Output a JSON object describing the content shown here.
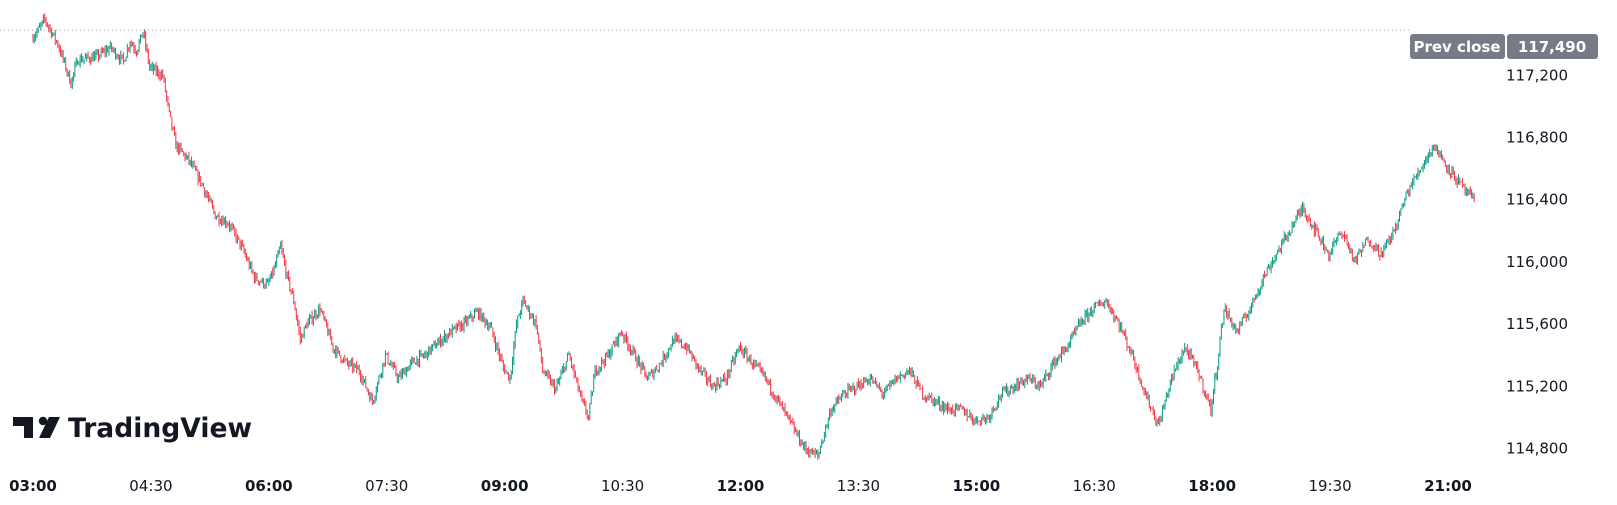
{
  "chart_data": {
    "type": "candlestick",
    "x_range": [
      "03:00",
      "21:00"
    ],
    "ylim": [
      114700,
      117620
    ],
    "yticks": [
      117200,
      116800,
      116400,
      116000,
      115600,
      115200,
      114800
    ],
    "ytick_labels": [
      "117,200",
      "116,800",
      "116,400",
      "116,000",
      "115,600",
      "115,200",
      "114,800"
    ],
    "xticks": [
      {
        "label": "03:00",
        "bold": true
      },
      {
        "label": "04:30",
        "bold": false
      },
      {
        "label": "06:00",
        "bold": true
      },
      {
        "label": "07:30",
        "bold": false
      },
      {
        "label": "09:00",
        "bold": true
      },
      {
        "label": "10:30",
        "bold": false
      },
      {
        "label": "12:00",
        "bold": true
      },
      {
        "label": "13:30",
        "bold": false
      },
      {
        "label": "15:00",
        "bold": true
      },
      {
        "label": "16:30",
        "bold": false
      },
      {
        "label": "18:00",
        "bold": true
      },
      {
        "label": "19:30",
        "bold": false
      },
      {
        "label": "21:00",
        "bold": true
      }
    ],
    "prev_close": {
      "label": "Prev close",
      "value": 117490,
      "value_label": "117,490"
    },
    "up_color": "#089981",
    "down_color": "#f23645",
    "path": [
      [
        "03:00",
        117440
      ],
      [
        "03:05",
        117490
      ],
      [
        "03:10",
        117560
      ],
      [
        "03:20",
        117400
      ],
      [
        "03:30",
        117150
      ],
      [
        "03:35",
        117300
      ],
      [
        "03:50",
        117320
      ],
      [
        "04:00",
        117380
      ],
      [
        "04:10",
        117290
      ],
      [
        "04:15",
        117420
      ],
      [
        "04:20",
        117360
      ],
      [
        "04:25",
        117480
      ],
      [
        "04:30",
        117250
      ],
      [
        "04:40",
        117200
      ],
      [
        "04:45",
        116950
      ],
      [
        "04:50",
        116750
      ],
      [
        "05:00",
        116650
      ],
      [
        "05:10",
        116500
      ],
      [
        "05:20",
        116300
      ],
      [
        "05:30",
        116250
      ],
      [
        "05:40",
        116100
      ],
      [
        "05:50",
        115900
      ],
      [
        "06:00",
        115850
      ],
      [
        "06:05",
        115950
      ],
      [
        "06:10",
        116100
      ],
      [
        "06:15",
        115900
      ],
      [
        "06:20",
        115750
      ],
      [
        "06:25",
        115500
      ],
      [
        "06:30",
        115600
      ],
      [
        "06:40",
        115700
      ],
      [
        "06:50",
        115450
      ],
      [
        "07:00",
        115350
      ],
      [
        "07:10",
        115300
      ],
      [
        "07:20",
        115100
      ],
      [
        "07:30",
        115400
      ],
      [
        "07:40",
        115250
      ],
      [
        "07:50",
        115350
      ],
      [
        "08:00",
        115400
      ],
      [
        "08:10",
        115480
      ],
      [
        "08:20",
        115550
      ],
      [
        "08:30",
        115600
      ],
      [
        "08:40",
        115680
      ],
      [
        "08:50",
        115580
      ],
      [
        "09:00",
        115320
      ],
      [
        "09:05",
        115250
      ],
      [
        "09:10",
        115600
      ],
      [
        "09:15",
        115750
      ],
      [
        "09:25",
        115600
      ],
      [
        "09:30",
        115300
      ],
      [
        "09:40",
        115180
      ],
      [
        "09:50",
        115400
      ],
      [
        "10:00",
        115100
      ],
      [
        "10:05",
        115000
      ],
      [
        "10:10",
        115300
      ],
      [
        "10:20",
        115400
      ],
      [
        "10:30",
        115550
      ],
      [
        "10:40",
        115400
      ],
      [
        "10:50",
        115250
      ],
      [
        "11:00",
        115350
      ],
      [
        "11:10",
        115500
      ],
      [
        "11:20",
        115450
      ],
      [
        "11:30",
        115300
      ],
      [
        "11:40",
        115200
      ],
      [
        "11:50",
        115250
      ],
      [
        "12:00",
        115450
      ],
      [
        "12:10",
        115350
      ],
      [
        "12:20",
        115250
      ],
      [
        "12:30",
        115100
      ],
      [
        "12:40",
        114950
      ],
      [
        "12:50",
        114800
      ],
      [
        "13:00",
        114750
      ],
      [
        "13:10",
        115050
      ],
      [
        "13:20",
        115150
      ],
      [
        "13:30",
        115200
      ],
      [
        "13:40",
        115250
      ],
      [
        "13:50",
        115150
      ],
      [
        "14:00",
        115250
      ],
      [
        "14:10",
        115300
      ],
      [
        "14:20",
        115150
      ],
      [
        "14:30",
        115100
      ],
      [
        "14:40",
        115050
      ],
      [
        "14:50",
        115050
      ],
      [
        "15:00",
        114980
      ],
      [
        "15:10",
        115000
      ],
      [
        "15:20",
        115150
      ],
      [
        "15:30",
        115200
      ],
      [
        "15:40",
        115250
      ],
      [
        "15:50",
        115200
      ],
      [
        "16:00",
        115350
      ],
      [
        "16:10",
        115450
      ],
      [
        "16:20",
        115600
      ],
      [
        "16:30",
        115700
      ],
      [
        "16:40",
        115750
      ],
      [
        "16:50",
        115600
      ],
      [
        "17:00",
        115400
      ],
      [
        "17:10",
        115150
      ],
      [
        "17:20",
        114950
      ],
      [
        "17:30",
        115250
      ],
      [
        "17:40",
        115450
      ],
      [
        "17:50",
        115300
      ],
      [
        "18:00",
        115050
      ],
      [
        "18:05",
        115350
      ],
      [
        "18:10",
        115700
      ],
      [
        "18:20",
        115550
      ],
      [
        "18:30",
        115700
      ],
      [
        "18:40",
        115900
      ],
      [
        "18:50",
        116050
      ],
      [
        "19:00",
        116200
      ],
      [
        "19:10",
        116350
      ],
      [
        "19:20",
        116200
      ],
      [
        "19:30",
        116050
      ],
      [
        "19:40",
        116200
      ],
      [
        "19:50",
        116000
      ],
      [
        "20:00",
        116150
      ],
      [
        "20:10",
        116050
      ],
      [
        "20:20",
        116200
      ],
      [
        "20:30",
        116450
      ],
      [
        "20:40",
        116600
      ],
      [
        "20:50",
        116750
      ],
      [
        "21:00",
        116620
      ],
      [
        "21:10",
        116500
      ],
      [
        "21:20",
        116400
      ]
    ]
  },
  "logo": {
    "text": "TradingView"
  }
}
